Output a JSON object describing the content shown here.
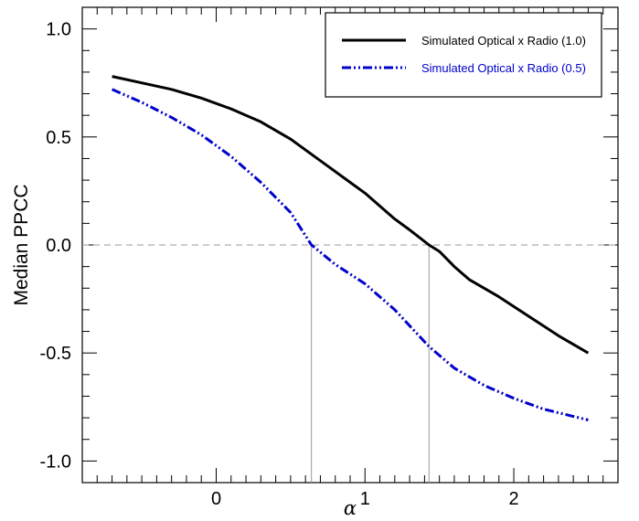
{
  "chart_data": {
    "type": "line",
    "title": "",
    "xlabel": "α",
    "ylabel": "Median PPCC",
    "xlim": [
      -0.9,
      2.7
    ],
    "ylim": [
      -1.1,
      1.1
    ],
    "x_ticks": [
      0,
      1,
      2
    ],
    "x_tick_labels": [
      "0",
      "1",
      "2"
    ],
    "y_ticks": [
      1.0,
      0.5,
      0.0,
      -0.5,
      -1.0
    ],
    "y_tick_labels": [
      "1.0",
      "0.5",
      "0.0",
      "-0.5",
      "-1.0"
    ],
    "grid": false,
    "legend_position": "top-right",
    "zero_line": {
      "y": 0,
      "style": "dashed",
      "color": "#999999"
    },
    "crossing_markers": [
      0.64,
      1.43
    ],
    "series": [
      {
        "name": "Simulated Optical x Radio (1.0)",
        "color": "#000000",
        "style": "solid",
        "x": [
          -0.7,
          -0.5,
          -0.3,
          -0.1,
          0.1,
          0.3,
          0.5,
          0.7,
          0.9,
          1.0,
          1.1,
          1.2,
          1.3,
          1.43,
          1.5,
          1.6,
          1.7,
          1.9,
          2.1,
          2.3,
          2.5
        ],
        "y": [
          0.78,
          0.75,
          0.72,
          0.68,
          0.63,
          0.57,
          0.49,
          0.39,
          0.29,
          0.24,
          0.18,
          0.12,
          0.07,
          0.0,
          -0.03,
          -0.1,
          -0.16,
          -0.24,
          -0.33,
          -0.42,
          -0.5
        ]
      },
      {
        "name": "Simulated Optical x Radio (0.5)",
        "color": "#0000cc",
        "style": "dash-dot-dot",
        "x": [
          -0.7,
          -0.5,
          -0.3,
          -0.1,
          0.1,
          0.3,
          0.5,
          0.64,
          0.8,
          1.0,
          1.2,
          1.43,
          1.6,
          1.8,
          2.0,
          2.2,
          2.5
        ],
        "y": [
          0.72,
          0.66,
          0.59,
          0.51,
          0.41,
          0.29,
          0.15,
          0.0,
          -0.09,
          -0.18,
          -0.3,
          -0.47,
          -0.57,
          -0.65,
          -0.71,
          -0.76,
          -0.81
        ]
      }
    ]
  }
}
